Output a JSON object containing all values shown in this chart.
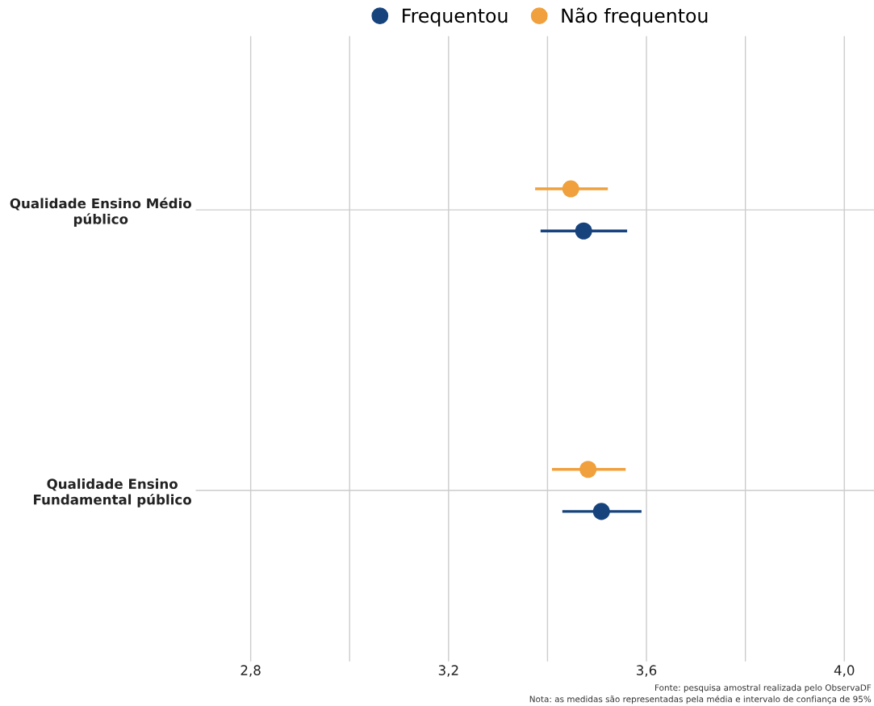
{
  "chart_data": {
    "type": "scatter",
    "orientation": "horizontal",
    "categories": [
      "Qualidade Ensino Médio\npúblico",
      "Qualidade Ensino\nFundamental público"
    ],
    "series": [
      {
        "name": "Frequentou",
        "color": "#17437d",
        "values": [
          3.473,
          3.509
        ],
        "errors": [
          [
            3.386,
            3.561
          ],
          [
            3.43,
            3.59
          ]
        ]
      },
      {
        "name": "Não frequentou",
        "color": "#f0a03c",
        "values": [
          3.447,
          3.482
        ],
        "errors": [
          [
            3.375,
            3.522
          ],
          [
            3.409,
            3.558
          ]
        ]
      }
    ],
    "xlim": [
      2.689,
      4.06
    ],
    "xticks": [
      {
        "value": 2.8,
        "label": "2,8"
      },
      {
        "value": 3.0,
        "label": null
      },
      {
        "value": 3.2,
        "label": "3,2"
      },
      {
        "value": 3.4,
        "label": null
      },
      {
        "value": 3.6,
        "label": "3,6"
      },
      {
        "value": 3.8,
        "label": null
      },
      {
        "value": 4.0,
        "label": "4,0"
      }
    ],
    "grid": true,
    "legend": "top",
    "marker": "circle",
    "annotations": [
      "Fonte: pesquisa amostral realizada pelo ObservaDF",
      "Nota: as medidas são representadas pela média e intervalo de confiança de 95%"
    ]
  }
}
